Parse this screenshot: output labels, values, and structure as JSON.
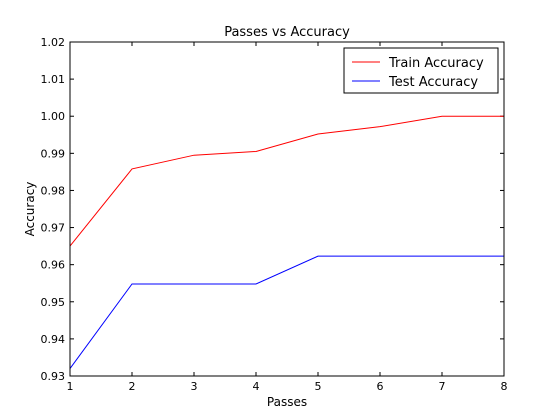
{
  "chart_data": {
    "type": "line",
    "title": "Passes vs Accuracy",
    "xlabel": "Passes",
    "ylabel": "Accuracy",
    "xlim": [
      1,
      8
    ],
    "ylim": [
      0.93,
      1.02
    ],
    "xticks": [
      "1",
      "2",
      "3",
      "4",
      "5",
      "6",
      "7",
      "8"
    ],
    "yticks": [
      "0.93",
      "0.94",
      "0.95",
      "0.96",
      "0.97",
      "0.98",
      "0.99",
      "1.00",
      "1.01",
      "1.02"
    ],
    "x": [
      1,
      2,
      3,
      4,
      5,
      6,
      7,
      8
    ],
    "grid": false,
    "legend_position": "top-right",
    "series": [
      {
        "name": "Train Accuracy",
        "color": "#ff0000",
        "values": [
          0.965,
          0.9858,
          0.9895,
          0.9905,
          0.9952,
          0.9972,
          1.0,
          1.0
        ]
      },
      {
        "name": "Test Accuracy",
        "color": "#0000ff",
        "values": [
          0.932,
          0.9548,
          0.9548,
          0.9548,
          0.9623,
          0.9623,
          0.9623,
          0.9623
        ]
      }
    ]
  }
}
